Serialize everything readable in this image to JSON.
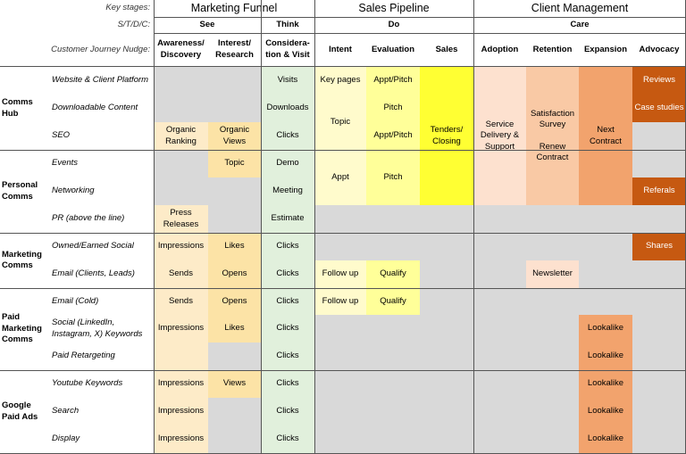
{
  "header": {
    "key_stages_label": "Key stages:",
    "stdc_label": "S/T/D/C:",
    "nudge_label": "Customer Journey Nudge:",
    "stages": [
      "Marketing Funnel",
      "Sales Pipeline",
      "Client Management"
    ],
    "stdc": [
      "See",
      "Think",
      "Do",
      "Care"
    ],
    "columns": [
      "Awareness/\nDiscovery",
      "Interest/\nResearch",
      "Considera-\ntion & Visit",
      "Intent",
      "Evaluation",
      "Sales",
      "Adoption",
      "Retention",
      "Expansion",
      "Advocacy"
    ]
  },
  "groups": [
    "Comms\nHub",
    "Personal\nComms",
    "Marketing\nComms",
    "Paid\nMarketing\nComms",
    "Google\nPaid Ads"
  ],
  "rows": [
    "Website & Client Platform",
    "Downloadable Content",
    "SEO",
    "Events",
    "Networking",
    "PR (above the line)",
    "Owned/Earned Social",
    "Email (Clients, Leads)",
    "Email (Cold)",
    "Social (LinkedIn,\nInstagram, X) Keywords",
    "Paid Retargeting",
    "Youtube Keywords",
    "Search",
    "Display"
  ],
  "cells": {
    "visits": "Visits",
    "downloads": "Downloads",
    "clicks": "Clicks",
    "demo": "Demo",
    "meeting": "Meeting",
    "estimate": "Estimate",
    "key_pages": "Key pages",
    "topic": "Topic",
    "appt": "Appt",
    "appt_pitch": "Appt/Pitch",
    "pitch": "Pitch",
    "follow_up": "Follow up",
    "qualify": "Qualify",
    "tenders": "Tenders/\nClosing",
    "service": "Service\nDelivery &\nSupport",
    "satisfaction": "Satisfaction\nSurvey\n\nRenew\nContract",
    "next_contract": "Next\nContract",
    "newsletter": "Newsletter",
    "lookalike": "Lookalike",
    "reviews": "Reviews",
    "case_studies": "Case studies",
    "referals": "Referals",
    "shares": "Shares",
    "organic_ranking": "Organic\nRanking",
    "organic_views": "Organic\nViews",
    "press_releases": "Press\nReleases",
    "impressions": "Impressions",
    "sends": "Sends",
    "likes": "Likes",
    "opens": "Opens",
    "views": "Views"
  },
  "colors": {
    "grey": "#d9d9d9",
    "light_orange": "#fdebc8",
    "orange_light": "#fce3a6",
    "green": "#e1f0dc",
    "light_yellow": "#fffbcc",
    "mid_yellow": "#ffff99",
    "bright_yellow": "#ffff33",
    "peach": "#fde1cf",
    "salmon": "#f9c9a5",
    "coral": "#f2a36d",
    "burnt_orange": "#c65911"
  }
}
